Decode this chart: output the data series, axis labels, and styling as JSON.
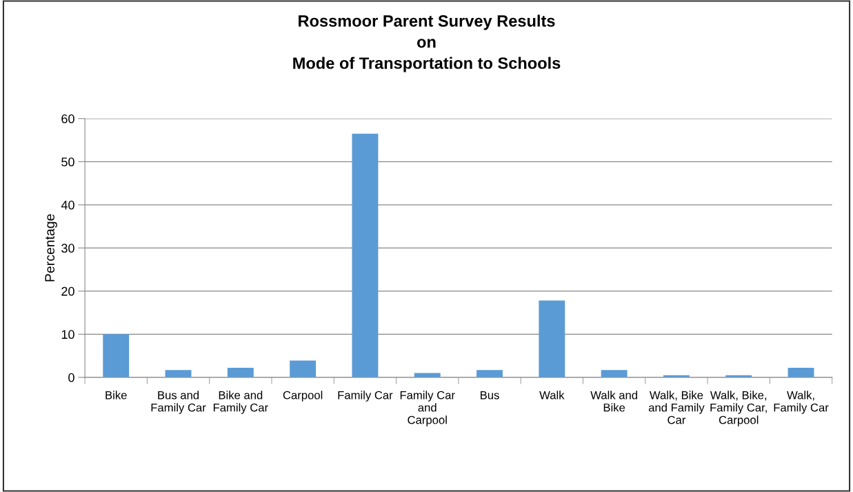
{
  "chart_data": {
    "type": "bar",
    "title": "Rossmoor Parent Survey Results\non\nMode of Transportation to Schools",
    "ylabel": "Percentage",
    "categories": [
      "Bike",
      "Bus and Family Car",
      "Bike and Family Car",
      "Carpool",
      "Family Car",
      "Family Car and Carpool",
      "Bus",
      "Walk",
      "Walk and Bike",
      "Walk, Bike and Family Car",
      "Walk, Bike, Family Car, Carpool",
      "Walk, Family Car"
    ],
    "values": [
      10,
      1.7,
      2.2,
      3.9,
      56.5,
      1.0,
      1.7,
      17.8,
      1.7,
      0.5,
      0.5,
      2.2
    ],
    "color": "#5b9bd5",
    "ylim": [
      0,
      60
    ],
    "yticks": [
      0,
      10,
      20,
      30,
      40,
      50,
      60
    ],
    "grid": "y"
  }
}
